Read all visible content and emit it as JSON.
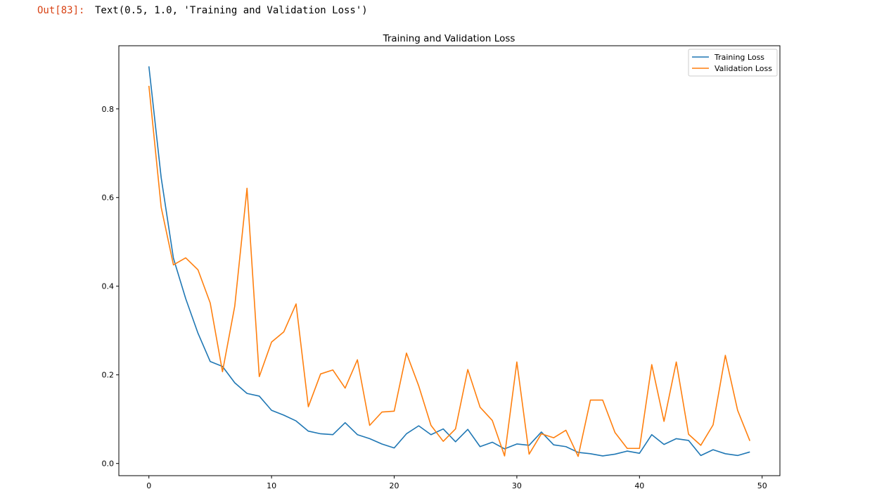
{
  "output": {
    "prompt": "Out[83]:",
    "text": "Text(0.5, 1.0, 'Training and Validation Loss')"
  },
  "chart_data": {
    "type": "line",
    "title": "Training and Validation Loss",
    "xlabel": "",
    "ylabel": "",
    "xlim": [
      -2.45,
      51.45
    ],
    "ylim": [
      -0.0275,
      0.9425
    ],
    "xticks": [
      0,
      10,
      20,
      30,
      40,
      50
    ],
    "yticks": [
      0.0,
      0.2,
      0.4,
      0.6,
      0.8
    ],
    "xtick_labels": [
      "0",
      "10",
      "20",
      "30",
      "40",
      "50"
    ],
    "ytick_labels": [
      "0.0",
      "0.2",
      "0.4",
      "0.6",
      "0.8"
    ],
    "grid": false,
    "legend_position": "upper right",
    "x": [
      0,
      1,
      2,
      3,
      4,
      5,
      6,
      7,
      8,
      9,
      10,
      11,
      12,
      13,
      14,
      15,
      16,
      17,
      18,
      19,
      20,
      21,
      22,
      23,
      24,
      25,
      26,
      27,
      28,
      29,
      30,
      31,
      32,
      33,
      34,
      35,
      36,
      37,
      38,
      39,
      40,
      41,
      42,
      43,
      44,
      45,
      46,
      47,
      48,
      49
    ],
    "series": [
      {
        "name": "Training Loss",
        "color": "#1f77b4",
        "values": [
          0.896,
          0.645,
          0.463,
          0.372,
          0.294,
          0.23,
          0.219,
          0.182,
          0.158,
          0.152,
          0.12,
          0.109,
          0.096,
          0.073,
          0.067,
          0.065,
          0.092,
          0.065,
          0.056,
          0.044,
          0.035,
          0.067,
          0.085,
          0.065,
          0.078,
          0.049,
          0.077,
          0.038,
          0.048,
          0.033,
          0.044,
          0.041,
          0.071,
          0.042,
          0.038,
          0.025,
          0.022,
          0.017,
          0.021,
          0.028,
          0.023,
          0.065,
          0.043,
          0.056,
          0.052,
          0.018,
          0.031,
          0.022,
          0.018,
          0.026
        ]
      },
      {
        "name": "Validation Loss",
        "color": "#ff7f0e",
        "values": [
          0.852,
          0.578,
          0.448,
          0.464,
          0.437,
          0.362,
          0.207,
          0.355,
          0.621,
          0.196,
          0.274,
          0.297,
          0.36,
          0.128,
          0.202,
          0.211,
          0.17,
          0.234,
          0.086,
          0.116,
          0.118,
          0.249,
          0.175,
          0.086,
          0.05,
          0.078,
          0.212,
          0.127,
          0.097,
          0.017,
          0.229,
          0.021,
          0.067,
          0.058,
          0.075,
          0.016,
          0.143,
          0.143,
          0.07,
          0.034,
          0.034,
          0.223,
          0.095,
          0.229,
          0.066,
          0.041,
          0.087,
          0.244,
          0.12,
          0.051
        ]
      }
    ]
  }
}
